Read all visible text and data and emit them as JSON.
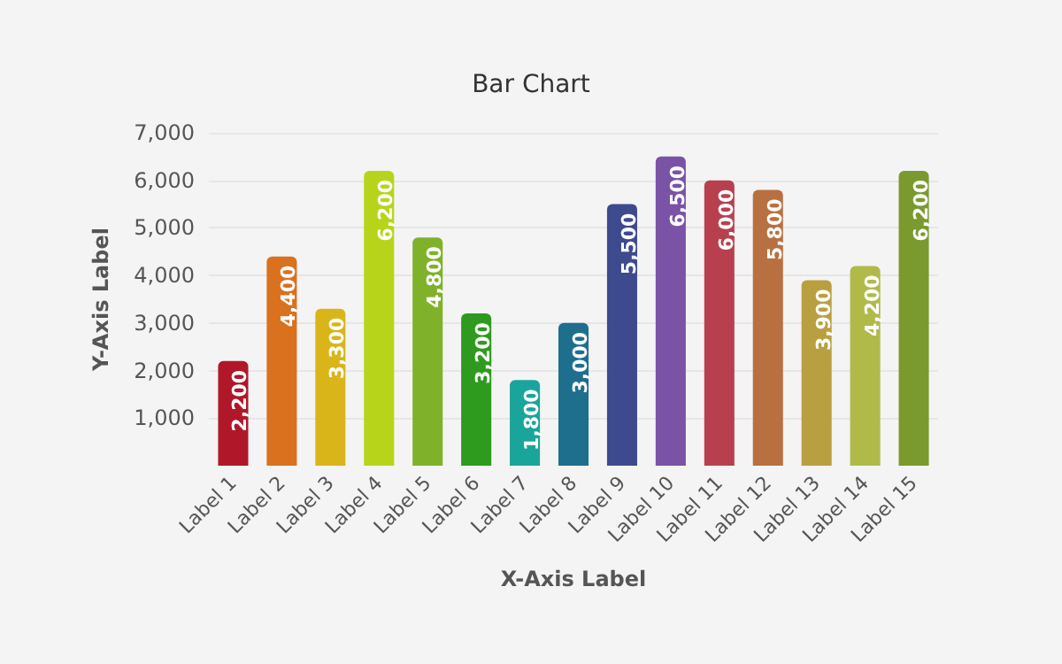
{
  "chart_data": {
    "type": "bar",
    "title": "Bar Chart",
    "xlabel": "X-Axis Label",
    "ylabel": "Y-Axis Label",
    "categories": [
      "Label 1",
      "Label 2",
      "Label 3",
      "Label 4",
      "Label 5",
      "Label 6",
      "Label 7",
      "Label 8",
      "Label 9",
      "Label 10",
      "Label 11",
      "Label 12",
      "Label 13",
      "Label 14",
      "Label 15"
    ],
    "values": [
      2200,
      4400,
      3300,
      6200,
      4800,
      3200,
      1800,
      3000,
      5500,
      6500,
      6000,
      5800,
      3900,
      4200,
      6200
    ],
    "value_labels": [
      "2,200",
      "4,400",
      "3,300",
      "6,200",
      "4,800",
      "3,200",
      "1,800",
      "3,000",
      "5,500",
      "6,500",
      "6,000",
      "5,800",
      "3,900",
      "4,200",
      "6,200"
    ],
    "colors": [
      "#b0182a",
      "#d9711e",
      "#d9b51a",
      "#b8d41a",
      "#7fb22a",
      "#2e9a1e",
      "#1aa59a",
      "#1e6e8e",
      "#3e4a8e",
      "#7a52a6",
      "#b8404e",
      "#b87040",
      "#b8a040",
      "#b0ba48",
      "#7a9a30"
    ],
    "ylim": [
      0,
      7000
    ],
    "yticks": [
      {
        "value": 1000,
        "label": "1,000"
      },
      {
        "value": 2000,
        "label": "2,000"
      },
      {
        "value": 3000,
        "label": "3,000"
      },
      {
        "value": 4000,
        "label": "4,000"
      },
      {
        "value": 5000,
        "label": "5,000"
      },
      {
        "value": 6000,
        "label": "6,000"
      },
      {
        "value": 7000,
        "label": "7,000"
      }
    ],
    "grid": "y"
  }
}
